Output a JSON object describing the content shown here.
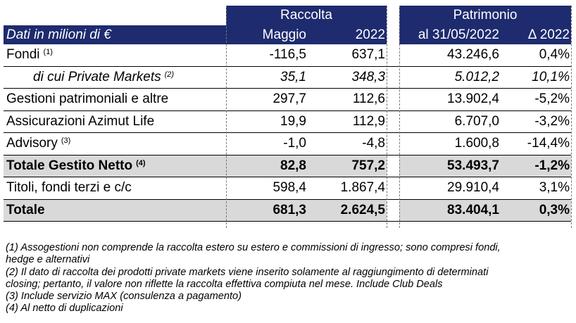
{
  "header": {
    "group1": "Raccolta",
    "group2": "Patrimonio",
    "label": "Dati in milioni di €",
    "col1": "Maggio",
    "col2": "2022",
    "col3": "al 31/05/2022",
    "col4": "Δ 2022"
  },
  "rows": [
    {
      "label": "Fondi",
      "note": "(1)",
      "v1": "-116,5",
      "v2": "637,1",
      "v3": "43.246,6",
      "v4": "0,4%"
    },
    {
      "label": "di cui Private Markets",
      "note": "(2)",
      "v1": "35,1",
      "v2": "348,3",
      "v3": "5.012,2",
      "v4": "10,1%"
    },
    {
      "label": "Gestioni patrimoniali e altre",
      "note": "",
      "v1": "297,7",
      "v2": "112,6",
      "v3": "13.902,4",
      "v4": "-5,2%"
    },
    {
      "label": "Assicurazioni Azimut Life",
      "note": "",
      "v1": "19,9",
      "v2": "112,9",
      "v3": "6.707,0",
      "v4": "-3,2%"
    },
    {
      "label": "Advisory",
      "note": "(3)",
      "v1": "-1,0",
      "v2": "-4,8",
      "v3": "1.600,8",
      "v4": "-14,4%"
    },
    {
      "label": "Totale Gestito Netto",
      "note": "(4)",
      "v1": "82,8",
      "v2": "757,2",
      "v3": "53.493,7",
      "v4": "-1,2%"
    },
    {
      "label": "Titoli, fondi terzi e c/c",
      "note": "",
      "v1": "598,4",
      "v2": "1.867,4",
      "v3": "29.910,4",
      "v4": "3,1%"
    },
    {
      "label": "Totale",
      "note": "",
      "v1": "681,3",
      "v2": "2.624,5",
      "v3": "83.404,1",
      "v4": "0,3%"
    }
  ],
  "notes": [
    "(1) Assogestioni non comprende la raccolta estero su estero e commissioni di ingresso; sono compresi fondi,",
    "hedge e alternativi",
    "(2) Il dato di raccolta dei prodotti private markets viene inserito solamente al raggiungimento di determinati",
    "closing; pertanto, il valore non riflette la raccolta effettiva compiuta nel mese. Include Club Deals",
    "(3) Include servizio MAX (consulenza a pagamento)",
    "(4) Al netto di duplicazioni"
  ],
  "colors": {
    "header_bg": "#1e2b6e",
    "total_bg": "#d9d9d9"
  }
}
